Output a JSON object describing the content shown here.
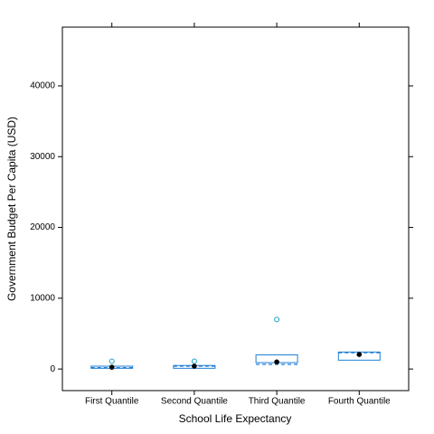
{
  "chart_data": {
    "type": "box",
    "xlabel": "School Life Expectancy",
    "ylabel": "Government Budget Per Capita (USD)",
    "categories": [
      "First Quantile",
      "Second Quantile",
      "Third Quantile",
      "Fourth Quantile"
    ],
    "boxes": [
      {
        "q1": 100,
        "q3": 400,
        "median": 250,
        "mean": 200,
        "outliers": [
          1100
        ]
      },
      {
        "q1": 100,
        "q3": 500,
        "median": 400,
        "mean": 400,
        "outliers": [
          1100
        ]
      },
      {
        "q1": 900,
        "q3": 2000,
        "median": 1000,
        "mean": 650,
        "outliers": [
          7000
        ]
      },
      {
        "q1": 1250,
        "q3": 2400,
        "median": 2050,
        "mean": 2300,
        "outliers": []
      }
    ],
    "box_color": "#1f7fd6",
    "outlier_color": "#1aa0c8",
    "median_color": "#000000",
    "ylim": [
      -3050,
      48300
    ],
    "yticks": [
      0,
      10000,
      20000,
      30000,
      40000
    ]
  }
}
